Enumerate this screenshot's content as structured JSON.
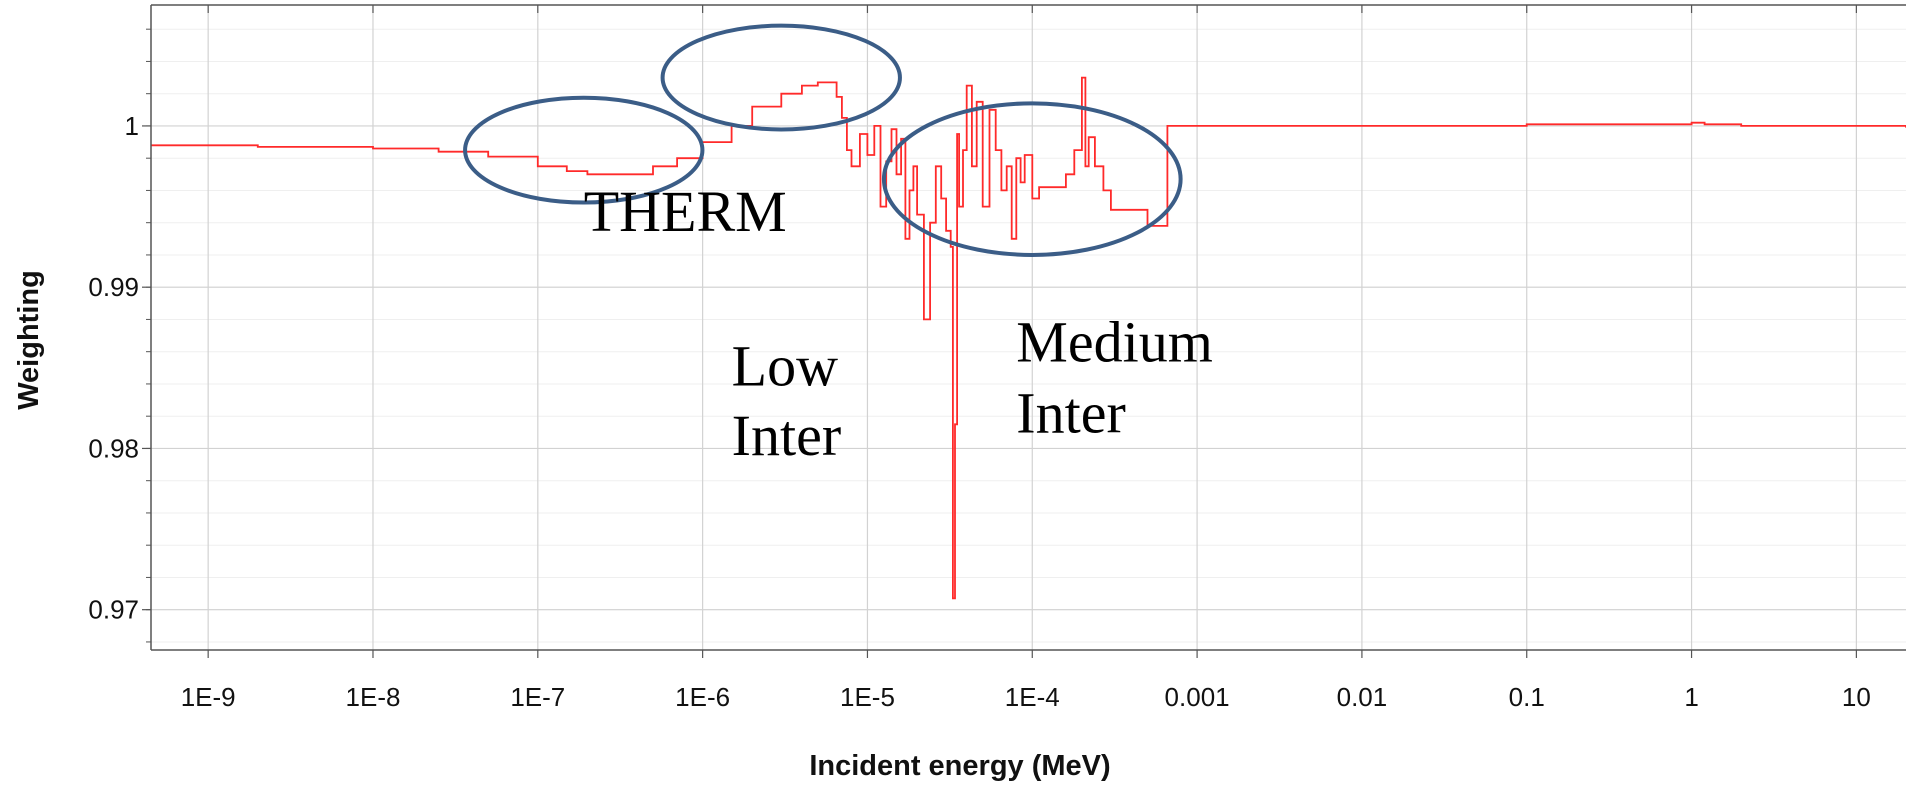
{
  "chart_data": {
    "type": "line",
    "xlabel": "Incident energy (MeV)",
    "ylabel": "Weighting",
    "x_scale": "log",
    "xlim": [
      4.5e-10,
      20
    ],
    "ylim": [
      0.9675,
      1.0075
    ],
    "x_ticks": [
      {
        "value": 1e-09,
        "label": "1E-9"
      },
      {
        "value": 1e-08,
        "label": "1E-8"
      },
      {
        "value": 1e-07,
        "label": "1E-7"
      },
      {
        "value": 1e-06,
        "label": "1E-6"
      },
      {
        "value": 1e-05,
        "label": "1E-5"
      },
      {
        "value": 0.0001,
        "label": "1E-4"
      },
      {
        "value": 0.001,
        "label": "0.001"
      },
      {
        "value": 0.01,
        "label": "0.01"
      },
      {
        "value": 0.1,
        "label": "0.1"
      },
      {
        "value": 1,
        "label": "1"
      },
      {
        "value": 10,
        "label": "10"
      }
    ],
    "y_ticks": [
      {
        "value": 0.97,
        "label": "0.97"
      },
      {
        "value": 0.98,
        "label": "0.98"
      },
      {
        "value": 0.99,
        "label": "0.99"
      },
      {
        "value": 1.0,
        "label": "1"
      }
    ],
    "grid": true,
    "line_color": "#ff2a2a",
    "series": [
      {
        "x": [
          4.5e-10,
          2e-09,
          1e-08,
          2.5e-08,
          5e-08,
          1e-07,
          1.5e-07,
          2e-07,
          3e-07,
          5e-07,
          7e-07,
          1e-06,
          1.5e-06,
          2e-06,
          3e-06,
          4e-06,
          5e-06,
          5.5e-06,
          6.5e-06,
          7e-06,
          7.5e-06,
          8e-06,
          9e-06,
          1e-05,
          1.1e-05,
          1.2e-05,
          1.3e-05,
          1.4e-05,
          1.5e-05,
          1.6e-05,
          1.7e-05,
          1.8e-05,
          1.9e-05,
          2e-05,
          2.2e-05,
          2.4e-05,
          2.6e-05,
          2.8e-05,
          3e-05,
          3.2e-05,
          3.3e-05,
          3.4e-05,
          3.5e-05,
          3.6e-05,
          3.8e-05,
          4e-05,
          4.3e-05,
          4.6e-05,
          5e-05,
          5.5e-05,
          6e-05,
          6.5e-05,
          7e-05,
          7.5e-05,
          8e-05,
          8.5e-05,
          9e-05,
          0.0001,
          0.00011,
          0.00012,
          0.00013,
          0.00014,
          0.00016,
          0.00018,
          0.0002,
          0.00021,
          0.00022,
          0.00024,
          0.00027,
          0.0003,
          0.0004,
          0.0005,
          0.00055,
          0.00064,
          0.00066,
          0.001,
          0.01,
          0.1,
          0.3,
          0.6,
          1,
          1.2,
          2,
          5,
          10,
          20
        ],
        "values": [
          0.9988,
          0.9987,
          0.9986,
          0.9984,
          0.9981,
          0.9975,
          0.9972,
          0.997,
          0.997,
          0.9975,
          0.998,
          0.999,
          1.0,
          1.0012,
          1.002,
          1.0025,
          1.0027,
          1.0027,
          1.0018,
          1.0005,
          0.9985,
          0.9975,
          0.9995,
          0.9982,
          1.0,
          0.995,
          0.9978,
          0.9998,
          0.997,
          0.9992,
          0.993,
          0.996,
          0.9975,
          0.9945,
          0.988,
          0.994,
          0.9975,
          0.9955,
          0.9935,
          0.9925,
          0.9707,
          0.9815,
          0.9995,
          0.995,
          0.9985,
          1.0025,
          0.9975,
          1.0015,
          0.995,
          1.001,
          0.9985,
          0.996,
          0.9975,
          0.993,
          0.998,
          0.9965,
          0.9982,
          0.9955,
          0.9962,
          0.9962,
          0.9962,
          0.9962,
          0.997,
          0.9985,
          1.003,
          0.9975,
          0.9993,
          0.9975,
          0.996,
          0.9948,
          0.9948,
          0.9938,
          0.9938,
          0.9938,
          1.0,
          1.0,
          1.0,
          1.0001,
          1.0001,
          1.0001,
          1.0002,
          1.0001,
          1.0,
          1.0,
          1.0,
          0.9999
        ]
      }
    ],
    "annotations": [
      {
        "text": "THERM",
        "x": 1.9e-07,
        "y": 0.9935
      },
      {
        "text": "Low",
        "x": 1.5e-06,
        "y": 0.9839
      },
      {
        "text": "Inter",
        "x": 1.5e-06,
        "y": 0.9796
      },
      {
        "text": "Medium",
        "x": 8e-05,
        "y": 0.9854
      },
      {
        "text": "Inter",
        "x": 8e-05,
        "y": 0.981
      }
    ],
    "highlight_ellipses": [
      {
        "name": "therm-ellipse",
        "cx": 1.9e-07,
        "cy": 0.9985,
        "rx_decades": 0.72,
        "ry": 0.00325
      },
      {
        "name": "low-inter-ellipse",
        "cx": 3e-06,
        "cy": 1.003,
        "rx_decades": 0.72,
        "ry": 0.00322
      },
      {
        "name": "medium-inter-ellipse",
        "cx": 0.0001,
        "cy": 0.9967,
        "rx_decades": 0.9,
        "ry": 0.0047
      }
    ],
    "ellipse_color": "#3b5d87"
  }
}
